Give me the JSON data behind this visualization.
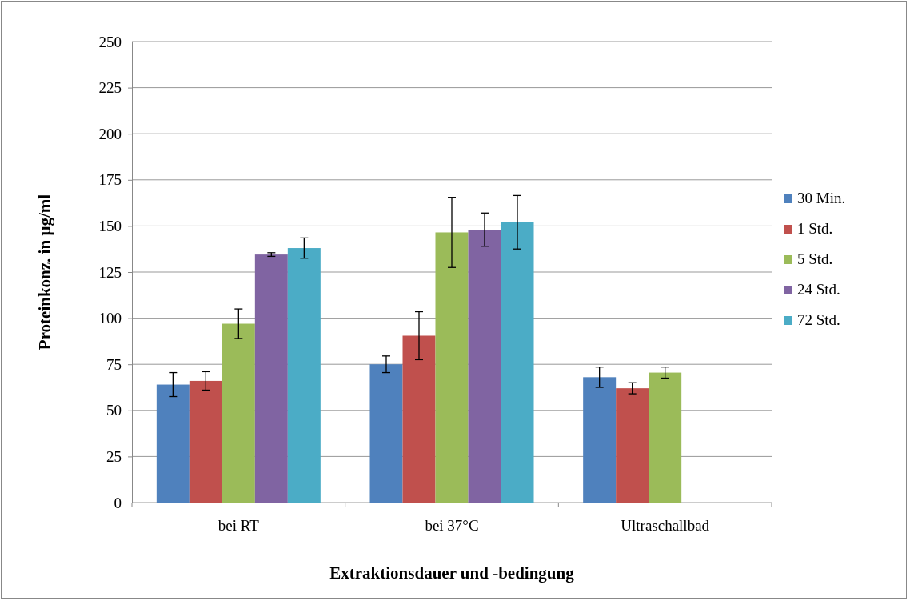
{
  "chart_data": {
    "type": "bar",
    "xlabel": "Extraktionsdauer und -bedingung",
    "ylabel": "Proteinkonz. in µg/ml",
    "categories": [
      "bei RT",
      "bei 37°C",
      "Ultraschallbad"
    ],
    "series": [
      {
        "name": "30 Min.",
        "color": "#4f81bd",
        "values": [
          64,
          75,
          68
        ],
        "errors": [
          6.5,
          4.5,
          5.5
        ]
      },
      {
        "name": "1 Std.",
        "color": "#c0504d",
        "values": [
          66,
          90.5,
          62
        ],
        "errors": [
          5,
          13,
          3
        ]
      },
      {
        "name": "5 Std.",
        "color": "#9bbb59",
        "values": [
          97,
          146.5,
          70.5
        ],
        "errors": [
          8,
          19,
          3
        ]
      },
      {
        "name": "24 Std.",
        "color": "#8064a2",
        "values": [
          134.5,
          148,
          null
        ],
        "errors": [
          1,
          9,
          null
        ]
      },
      {
        "name": "72 Std.",
        "color": "#4bacc6",
        "values": [
          138,
          152,
          null
        ],
        "errors": [
          5.5,
          14.5,
          null
        ]
      }
    ],
    "ylim": [
      0,
      250
    ],
    "yticks": [
      0,
      25,
      50,
      75,
      100,
      125,
      150,
      175,
      200,
      225,
      250
    ],
    "grid": "y",
    "legend": "right"
  }
}
